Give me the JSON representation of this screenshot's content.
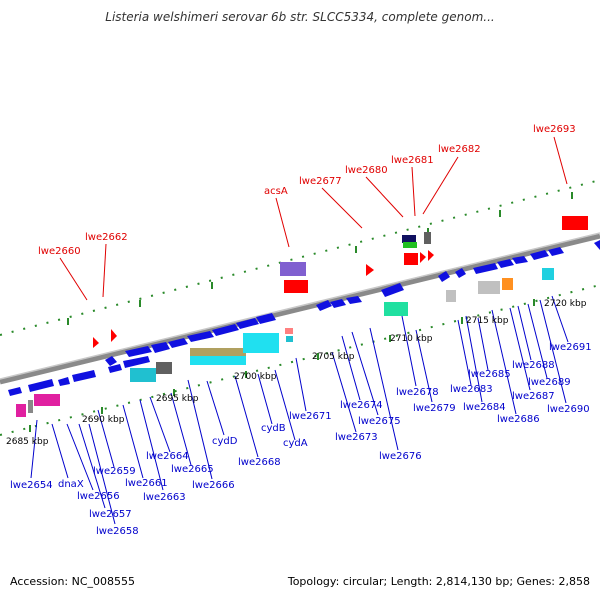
{
  "title": "Listeria welshimeri serovar 6b str. SLCC5334, complete genom...",
  "footer": {
    "accession": "Accession: NC_008555",
    "topology": "Topology: circular; Length: 2,814,130 bp; Genes: 2,858"
  },
  "colors": {
    "backbone": "#8a8a8a",
    "gene_forward": "#1010e0",
    "gene_reverse": "#1010e0",
    "label_gene": "#0000cc",
    "label_rna": "#e00000",
    "tick": "#2a8a2a",
    "rna": "#ff0000"
  },
  "kbp_ticks": [
    "2685 kbp",
    "2690 kbp",
    "2695 kbp",
    "2700 kbp",
    "2705 kbp",
    "2710 kbp",
    "2715 kbp",
    "2720 kbp"
  ],
  "top_labels": [
    "lwe2660",
    "lwe2662",
    "acsA",
    "lwe2677",
    "lwe2680",
    "lwe2681",
    "lwe2682",
    "lwe2693"
  ],
  "bottom_labels": [
    "lwe2654",
    "dnaX",
    "lwe2656",
    "lwe2657",
    "lwe2658",
    "lwe2659",
    "lwe2661",
    "lwe2663",
    "lwe2664",
    "lwe2665",
    "lwe2666",
    "cydD",
    "lwe2668",
    "cydB",
    "cydA",
    "lwe2671",
    "lwe2673",
    "lwe2674",
    "lwe2675",
    "lwe2676",
    "lwe2678",
    "lwe2679",
    "lwe2683",
    "lwe2684",
    "lwe2685",
    "lwe2686",
    "lwe2687",
    "lwe2688",
    "lwe2689",
    "lwe2690",
    "lwe2691"
  ]
}
